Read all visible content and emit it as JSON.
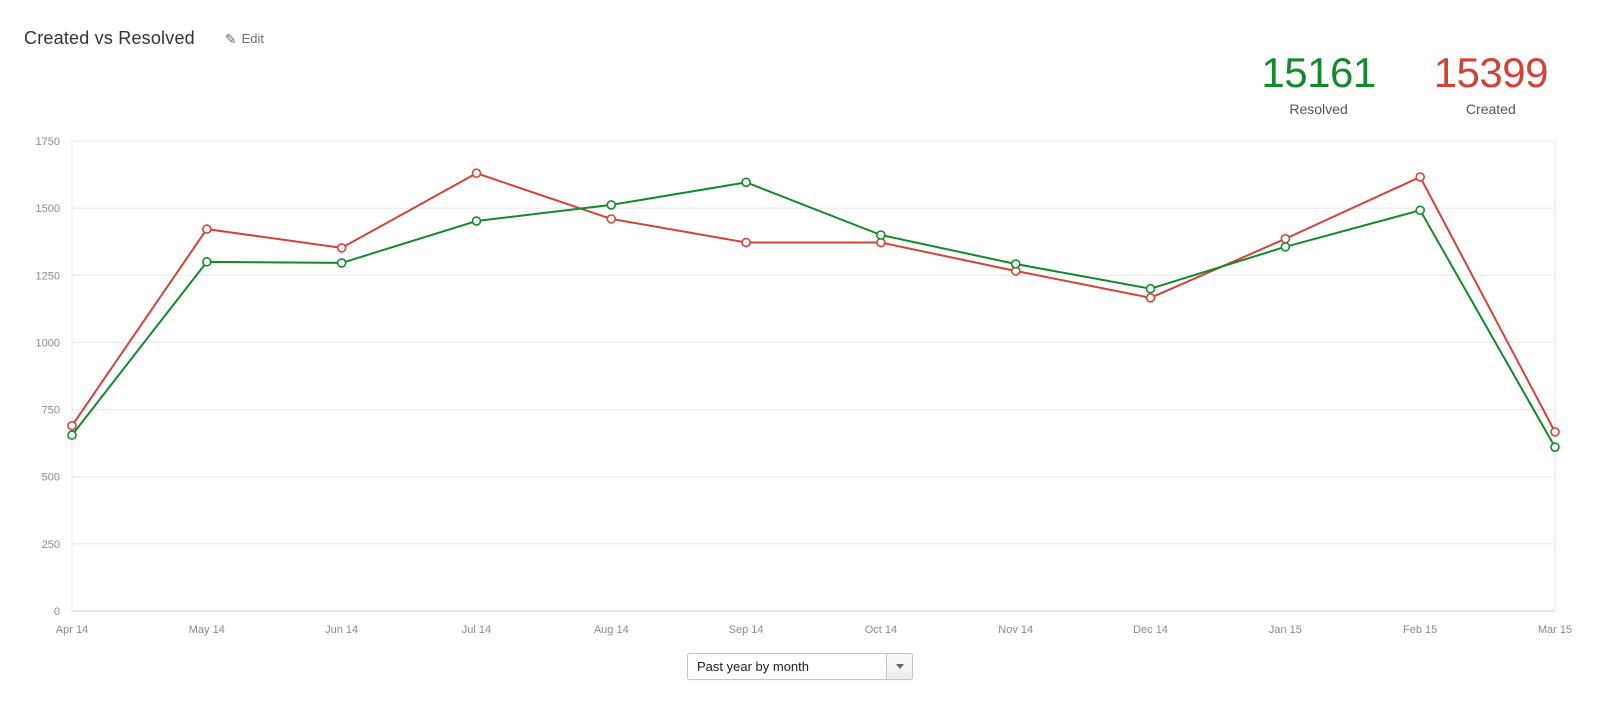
{
  "header": {
    "title": "Created vs Resolved",
    "edit_label": "Edit"
  },
  "totals": {
    "resolved": {
      "value": "15161",
      "label": "Resolved"
    },
    "created": {
      "value": "15399",
      "label": "Created"
    }
  },
  "controls": {
    "period_selected": "Past year by month"
  },
  "colors": {
    "resolved_green": "#14892c",
    "created_red": "#d04437",
    "grid_line": "#e8e8e8",
    "axis_line": "#cccccc",
    "tick_text": "#8b8b8b"
  },
  "chart_data": {
    "type": "line",
    "title": "Created vs Resolved",
    "categories": [
      "Apr 14",
      "May 14",
      "Jun 14",
      "Jul 14",
      "Aug 14",
      "Sep 14",
      "Oct 14",
      "Nov 14",
      "Dec 14",
      "Jan 15",
      "Feb 15",
      "Mar 15"
    ],
    "series": [
      {
        "name": "Created",
        "color": "#d04437",
        "values": [
          690,
          1422,
          1352,
          1630,
          1460,
          1372,
          1372,
          1266,
          1166,
          1386,
          1616,
          667
        ],
        "total": 15399
      },
      {
        "name": "Resolved",
        "color": "#14892c",
        "values": [
          655,
          1300,
          1296,
          1452,
          1512,
          1596,
          1400,
          1292,
          1200,
          1356,
          1492,
          610
        ],
        "total": 15161
      }
    ],
    "ylim": [
      0,
      1750
    ],
    "yticks": [
      0,
      250,
      500,
      750,
      1000,
      1250,
      1500,
      1750
    ],
    "xlabel": "",
    "ylabel": "",
    "grid": true,
    "legend_position": "none",
    "marker": "open-circle"
  }
}
